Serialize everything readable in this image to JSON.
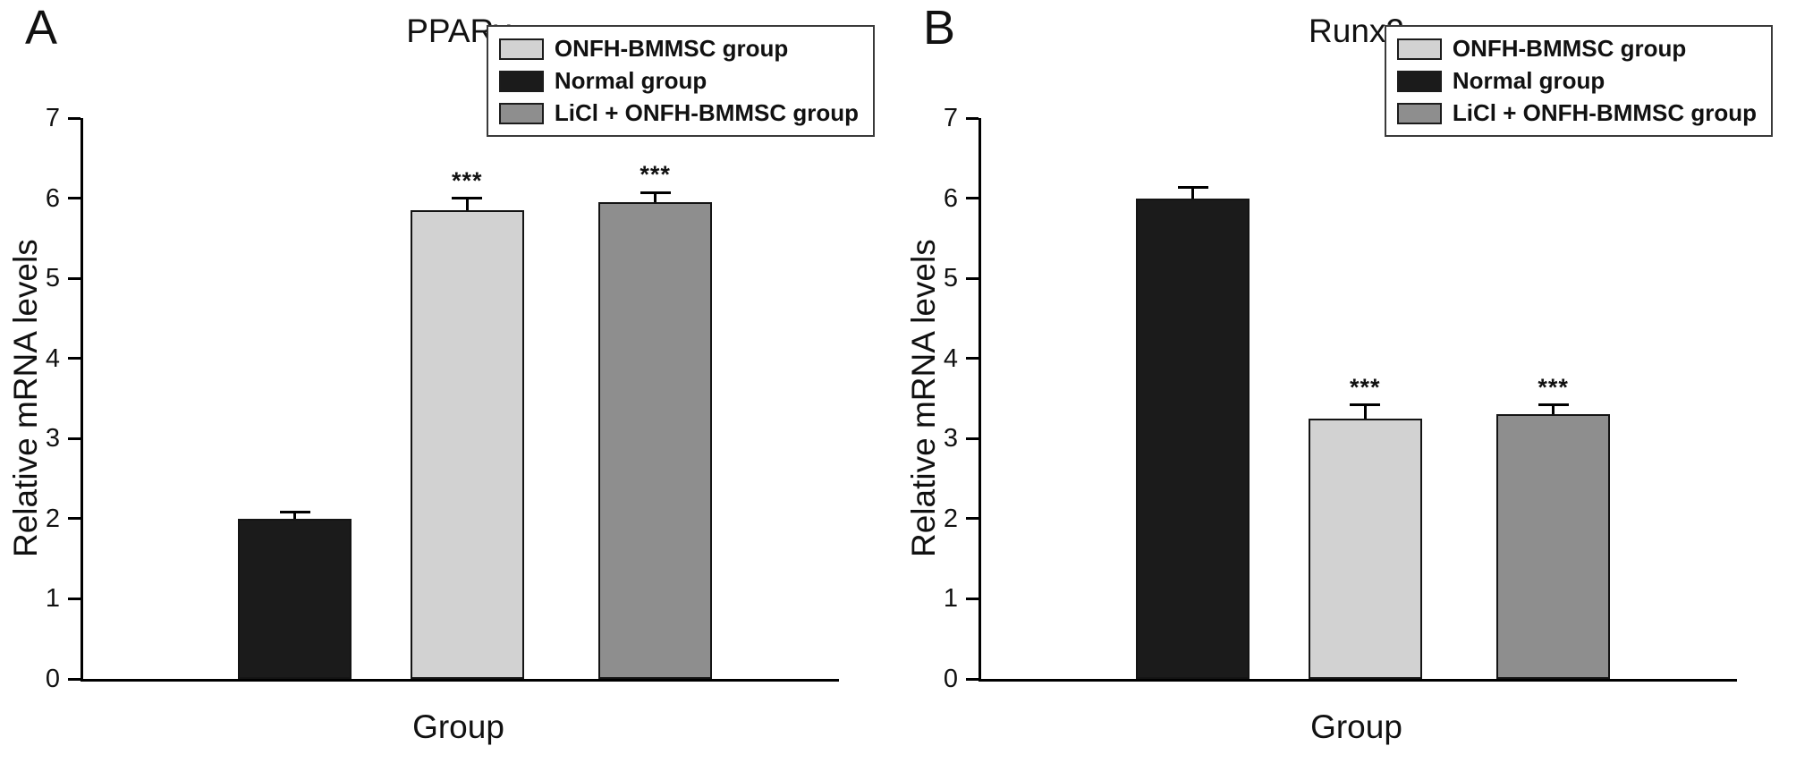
{
  "chart_data": [
    {
      "type": "bar",
      "panel_label": "A",
      "title": "PPARγ",
      "xlabel": "Group",
      "ylabel": "Relative mRNA levels",
      "ylim": [
        0,
        7
      ],
      "yticks": [
        0,
        1,
        2,
        3,
        4,
        5,
        6,
        7
      ],
      "grid": false,
      "categories": [
        "Normal group",
        "ONFH-BMMSC group",
        "LiCl + ONFH-BMMSC group"
      ],
      "values": [
        2.0,
        5.85,
        5.95
      ],
      "errors": [
        0.08,
        0.15,
        0.12
      ],
      "significance": [
        "",
        "***",
        "***"
      ],
      "bar_colors": [
        "#1b1b1b",
        "#d2d2d2",
        "#8e8e8e"
      ],
      "legend": {
        "position": "top-right",
        "items": [
          {
            "label": "ONFH-BMMSC group",
            "color": "#d2d2d2"
          },
          {
            "label": "Normal group",
            "color": "#1b1b1b"
          },
          {
            "label": "LiCl + ONFH-BMMSC group",
            "color": "#8e8e8e"
          }
        ]
      }
    },
    {
      "type": "bar",
      "panel_label": "B",
      "title": "Runx2",
      "xlabel": "Group",
      "ylabel": "Relative mRNA levels",
      "ylim": [
        0,
        7
      ],
      "yticks": [
        0,
        1,
        2,
        3,
        4,
        5,
        6,
        7
      ],
      "grid": false,
      "categories": [
        "Normal group",
        "ONFH-BMMSC group",
        "LiCl + ONFH-BMMSC group"
      ],
      "values": [
        6.0,
        3.25,
        3.3
      ],
      "errors": [
        0.13,
        0.17,
        0.12
      ],
      "significance": [
        "",
        "***",
        "***"
      ],
      "bar_colors": [
        "#1b1b1b",
        "#d2d2d2",
        "#8e8e8e"
      ],
      "legend": {
        "position": "top-right",
        "items": [
          {
            "label": "ONFH-BMMSC group",
            "color": "#d2d2d2"
          },
          {
            "label": "Normal group",
            "color": "#1b1b1b"
          },
          {
            "label": "LiCl + ONFH-BMMSC group",
            "color": "#8e8e8e"
          }
        ]
      }
    }
  ]
}
